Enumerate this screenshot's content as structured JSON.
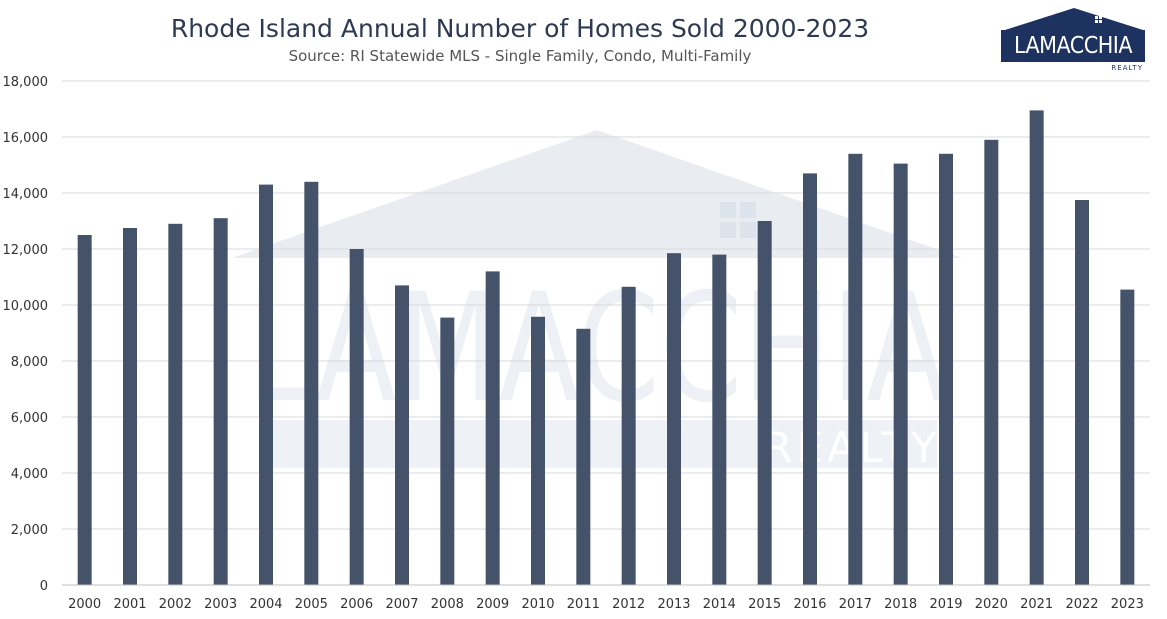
{
  "header": {
    "title": "Rhode Island Annual Number of Homes Sold 2000-2023",
    "subtitle": "Source: RI Statewide MLS - Single Family, Condo, Multi-Family"
  },
  "logo": {
    "name": "LAMACCHIA",
    "tagline": "REALTY"
  },
  "watermark": {
    "name": "LAMACCHIA",
    "tagline": "REALTY"
  },
  "colors": {
    "bar": "#44526a",
    "grid": "#d9d9d9",
    "axis_text": "#333333",
    "title": "#2d3a52",
    "brand": "#1e3260"
  },
  "chart_data": {
    "type": "bar",
    "title": "Rhode Island Annual Number of Homes Sold 2000-2023",
    "subtitle": "Source: RI Statewide MLS - Single Family, Condo, Multi-Family",
    "xlabel": "",
    "ylabel": "",
    "ylim": [
      0,
      18000
    ],
    "yticks": [
      "0",
      "2,000",
      "4,000",
      "6,000",
      "8,000",
      "10,000",
      "12,000",
      "14,000",
      "16,000",
      "18,000"
    ],
    "grid": true,
    "legend": "none",
    "categories": [
      "2000",
      "2001",
      "2002",
      "2003",
      "2004",
      "2005",
      "2006",
      "2007",
      "2008",
      "2009",
      "2010",
      "2011",
      "2012",
      "2013",
      "2014",
      "2015",
      "2016",
      "2017",
      "2018",
      "2019",
      "2020",
      "2021",
      "2022",
      "2023"
    ],
    "values": [
      12500,
      12750,
      12900,
      13100,
      14300,
      14400,
      12000,
      10700,
      9550,
      11200,
      9580,
      9150,
      10650,
      11850,
      11800,
      13000,
      14700,
      15400,
      15050,
      15400,
      15900,
      16950,
      13750,
      10550
    ]
  }
}
